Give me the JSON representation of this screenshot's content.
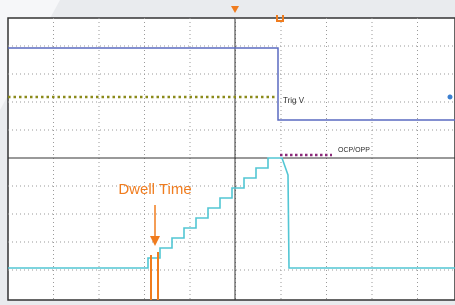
{
  "trace_labels": {
    "trigger": "Trig V",
    "protection": "OCP/OPP"
  },
  "annotation": "Dwell Time"
}
